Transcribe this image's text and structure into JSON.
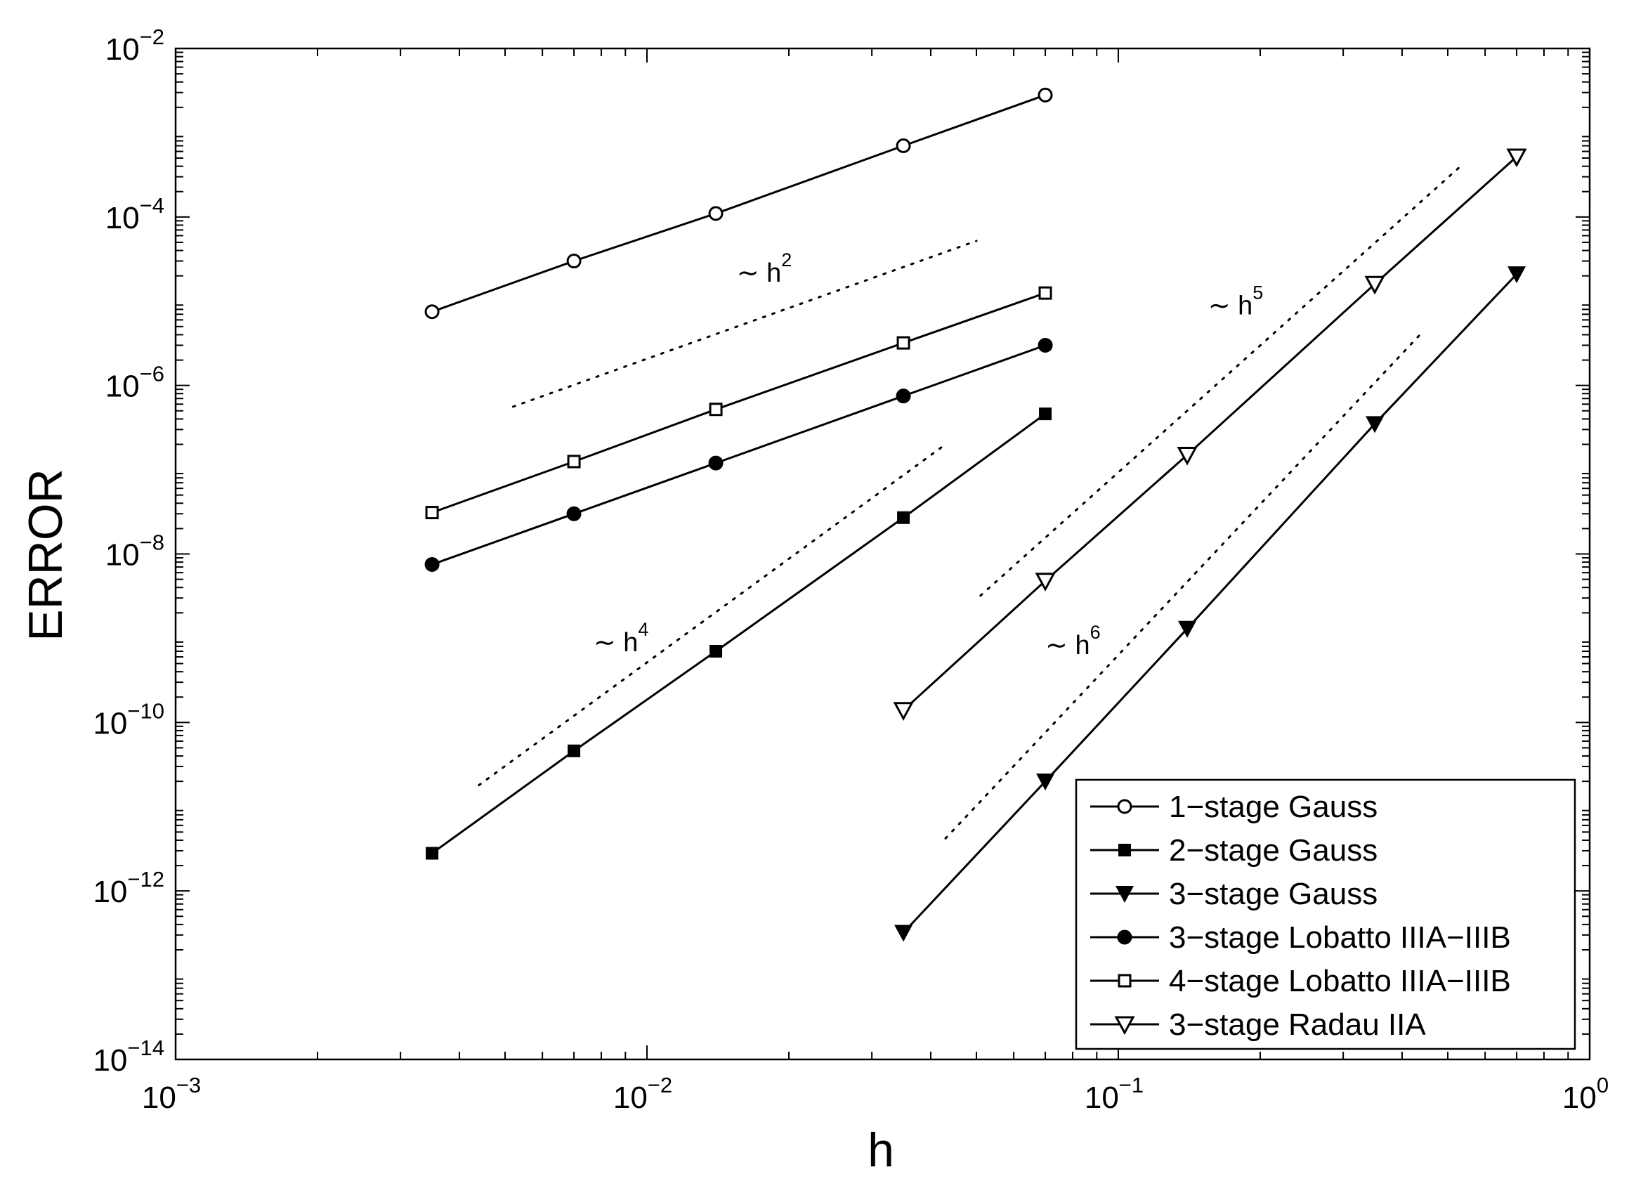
{
  "chart_data": {
    "type": "line",
    "xlabel": "h",
    "ylabel": "ERROR",
    "xscale": "log",
    "yscale": "log",
    "xlim": [
      0.001,
      1
    ],
    "ylim": [
      1e-14,
      0.01
    ],
    "grid": false,
    "legend_location": "bottom-right",
    "x_ticks": [
      {
        "value": 0.001,
        "base": "10",
        "exp": "−3"
      },
      {
        "value": 0.01,
        "base": "10",
        "exp": "−2"
      },
      {
        "value": 0.1,
        "base": "10",
        "exp": "−1"
      },
      {
        "value": 1,
        "base": "10",
        "exp": "0"
      }
    ],
    "y_ticks": [
      {
        "value": 0.01,
        "base": "10",
        "exp": "−2"
      },
      {
        "value": 0.0001,
        "base": "10",
        "exp": "−4"
      },
      {
        "value": 1e-06,
        "base": "10",
        "exp": "−6"
      },
      {
        "value": 1e-08,
        "base": "10",
        "exp": "−8"
      },
      {
        "value": 1e-10,
        "base": "10",
        "exp": "−10"
      },
      {
        "value": 1e-12,
        "base": "10",
        "exp": "−12"
      },
      {
        "value": 1e-14,
        "base": "10",
        "exp": "−14"
      }
    ],
    "series": [
      {
        "name": "1−stage Gauss",
        "marker": "circle-open",
        "x": [
          0.0035,
          0.007,
          0.014,
          0.035,
          0.07
        ],
        "y": [
          7.5e-06,
          3e-05,
          0.00011,
          0.0007,
          0.0028
        ]
      },
      {
        "name": "2−stage Gauss",
        "marker": "square-filled",
        "x": [
          0.0035,
          0.007,
          0.014,
          0.035,
          0.07
        ],
        "y": [
          2.8e-12,
          4.6e-11,
          7e-10,
          2.7e-08,
          4.6e-07
        ]
      },
      {
        "name": "3−stage Gauss",
        "marker": "triangle-down-filled",
        "x": [
          0.035,
          0.07,
          0.14,
          0.35,
          0.7
        ],
        "y": [
          3.2e-13,
          2e-11,
          1.3e-09,
          3.5e-07,
          2.1e-05
        ]
      },
      {
        "name": "3−stage Lobatto IIIA−IIIB",
        "marker": "circle-filled",
        "x": [
          0.0035,
          0.007,
          0.014,
          0.035,
          0.07
        ],
        "y": [
          7.5e-09,
          3e-08,
          1.2e-07,
          7.5e-07,
          3e-06
        ]
      },
      {
        "name": "4−stage Lobatto IIIA−IIIB",
        "marker": "square-open",
        "x": [
          0.0035,
          0.007,
          0.014,
          0.035,
          0.07
        ],
        "y": [
          3.1e-08,
          1.25e-07,
          5.2e-07,
          3.2e-06,
          1.25e-05
        ]
      },
      {
        "name": "3−stage Radau IIA",
        "marker": "triangle-down-open",
        "x": [
          0.035,
          0.07,
          0.14,
          0.35,
          0.7
        ],
        "y": [
          1.4e-10,
          4.8e-09,
          1.5e-07,
          1.6e-05,
          0.00052
        ]
      }
    ],
    "reference_lines": [
      {
        "label_prefix": "∼ h",
        "power": "2",
        "x": [
          0.0052,
          0.05
        ],
        "y": [
          5.6e-07,
          5.2e-05
        ],
        "label_x": 0.0155,
        "label_y": 1.7e-05
      },
      {
        "label_prefix": "∼ h",
        "power": "4",
        "x": [
          0.0044,
          0.043
        ],
        "y": [
          1.8e-11,
          2e-07
        ],
        "label_x": 0.0077,
        "label_y": 7e-10
      },
      {
        "label_prefix": "∼ h",
        "power": "5",
        "x": [
          0.051,
          0.54
        ],
        "y": [
          3.2e-09,
          0.00043
        ],
        "label_x": 0.155,
        "label_y": 7e-06
      },
      {
        "label_prefix": "∼ h",
        "power": "6",
        "x": [
          0.043,
          0.44
        ],
        "y": [
          4.2e-12,
          4.2e-06
        ],
        "label_x": 0.07,
        "label_y": 6.5e-10
      }
    ]
  }
}
